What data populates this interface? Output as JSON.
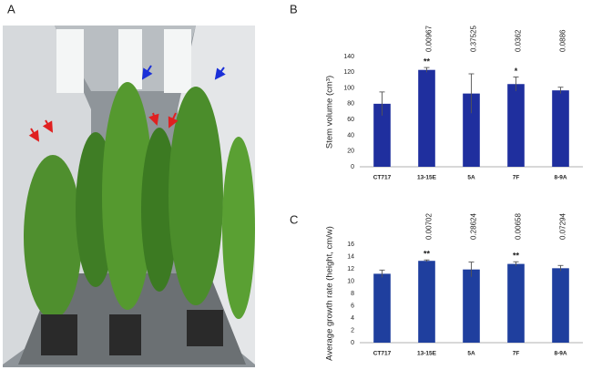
{
  "photo": {
    "panel": "A"
  },
  "chart_data": [
    {
      "type": "bar",
      "panel": "B",
      "y_label": "Stem volume (cm³)",
      "categories": [
        "CT717",
        "13-15E",
        "5A",
        "7F",
        "8-9A"
      ],
      "values": [
        80,
        123,
        93,
        105,
        97
      ],
      "errors": [
        15,
        3,
        25,
        9,
        4
      ],
      "p_values": [
        null,
        "0.00967",
        "0.37525",
        "0.0362",
        "0.0886"
      ],
      "significance": [
        null,
        "**",
        null,
        "*",
        null
      ],
      "color": "#1f2f9e",
      "ylim": [
        0,
        140
      ],
      "yticks": [
        0,
        20,
        40,
        60,
        80,
        100,
        120,
        140
      ]
    },
    {
      "type": "bar",
      "panel": "C",
      "y_label": "Average growth rate (height, cm/w)",
      "categories": [
        "CT717",
        "13-15E",
        "5A",
        "7F",
        "8-9A"
      ],
      "values": [
        11.2,
        13.3,
        11.9,
        12.8,
        12.1
      ],
      "errors": [
        0.6,
        0.15,
        1.2,
        0.35,
        0.45
      ],
      "p_values": [
        null,
        "0.00702",
        "0.28624",
        "0.00658",
        "0.07294"
      ],
      "significance": [
        null,
        "**",
        null,
        "**",
        null
      ],
      "color": "#1f3f9e",
      "ylim": [
        0,
        16
      ],
      "yticks": [
        0,
        2,
        4,
        6,
        8,
        10,
        12,
        14,
        16
      ]
    }
  ]
}
